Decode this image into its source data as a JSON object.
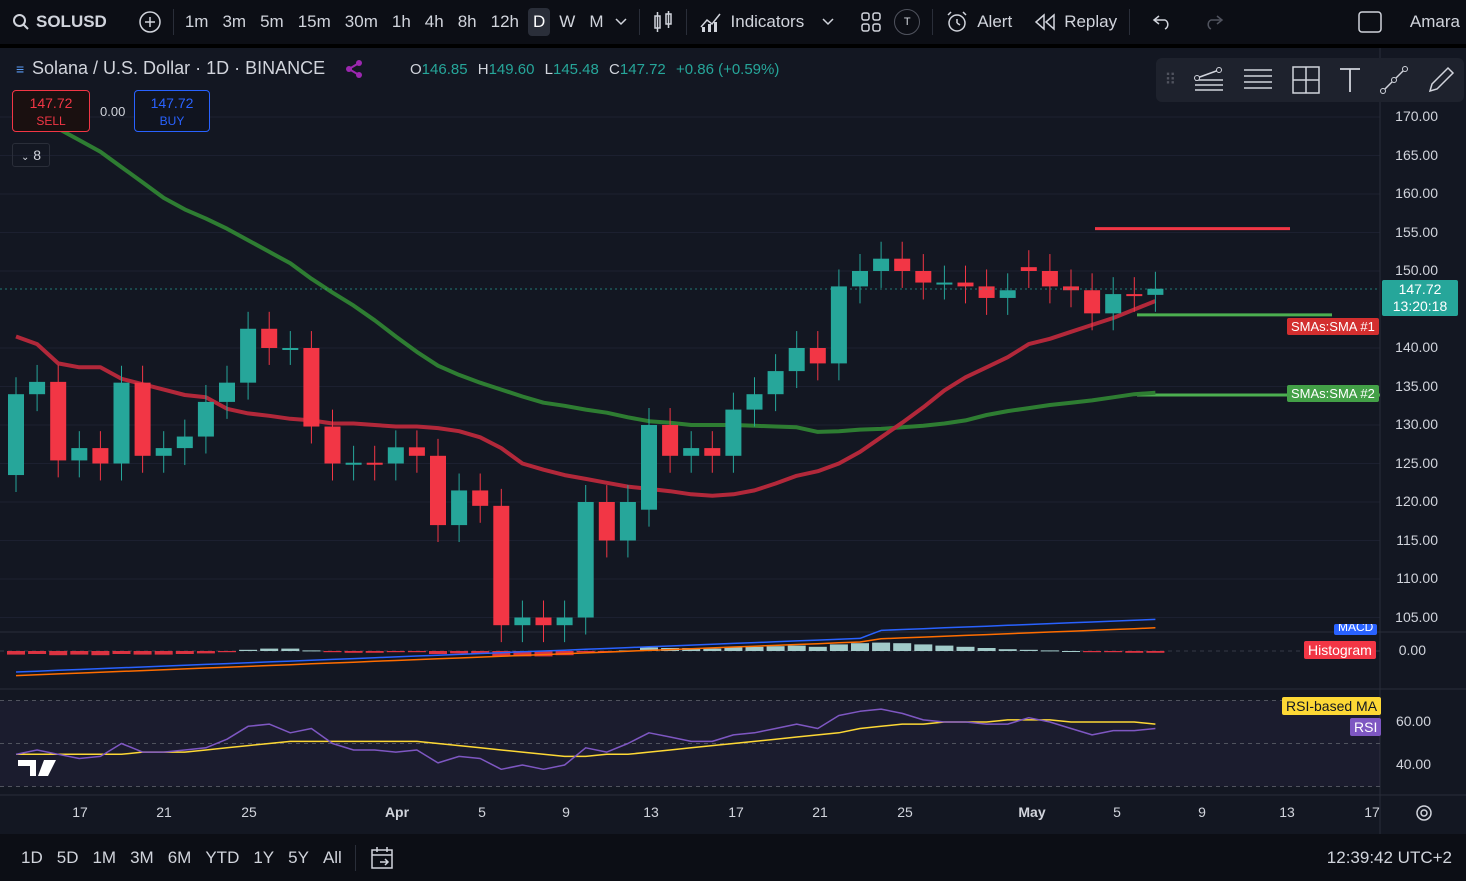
{
  "toolbar": {
    "symbol": "SOLUSD",
    "timeframes": [
      "1m",
      "3m",
      "5m",
      "15m",
      "30m",
      "1h",
      "4h",
      "8h",
      "12h",
      "D",
      "W",
      "M"
    ],
    "active_timeframe": "D",
    "indicators_label": "Indicators",
    "alert_label": "Alert",
    "replay_label": "Replay",
    "user_label": "Amara",
    "t_badge": "T"
  },
  "legend": {
    "title": "Solana / U.S. Dollar · 1D · BINANCE",
    "o_key": "O",
    "o": "146.85",
    "h_key": "H",
    "h": "149.60",
    "l_key": "L",
    "l": "145.48",
    "c_key": "C",
    "c": "147.72",
    "change": "+0.86 (+0.59%)"
  },
  "trade": {
    "sell_price": "147.72",
    "sell_label": "SELL",
    "spread": "0.00",
    "buy_price": "147.72",
    "buy_label": "BUY",
    "collapse_count": "8"
  },
  "price_axis": {
    "labels": [
      "170.00",
      "165.00",
      "160.00",
      "155.00",
      "150.00",
      "140.00",
      "135.00",
      "130.00",
      "125.00",
      "120.00",
      "115.00",
      "110.00",
      "105.00"
    ],
    "current_price": "147.72",
    "countdown": "13:20:18",
    "sma1_tag": "SMAs:SMA #1",
    "sma2_tag": "SMAs:SMA #2",
    "macd_tag": "MACD",
    "histogram_tag": "Histogram",
    "macd_zero": "0.00",
    "rsi_ma_tag": "RSI-based MA",
    "rsi_tag": "RSI",
    "rsi_60": "60.00",
    "rsi_40": "40.00"
  },
  "time_axis": [
    "17",
    "21",
    "25",
    "Apr",
    "5",
    "9",
    "13",
    "17",
    "21",
    "25",
    "May",
    "5",
    "9",
    "13",
    "17"
  ],
  "bottombar": {
    "ranges": [
      "1D",
      "5D",
      "1M",
      "3M",
      "6M",
      "YTD",
      "1Y",
      "5Y",
      "All"
    ],
    "clock": "12:39:42 UTC+2"
  },
  "colors": {
    "up": "#26a69a",
    "down": "#f23645",
    "sma1": "#b2283a",
    "sma2": "#2e7d32",
    "level_red": "#f23645",
    "level_green": "#4caf50",
    "macd": "#2962ff",
    "signal": "#ff6d00",
    "rsi": "#7e57c2",
    "rsi_ma": "#fdd835"
  },
  "chart_data": {
    "type": "candlestick",
    "x": [
      "Mar 14",
      "Mar 15",
      "Mar 16",
      "Mar 17",
      "Mar 18",
      "Mar 19",
      "Mar 20",
      "Mar 21",
      "Mar 22",
      "Mar 23",
      "Mar 24",
      "Mar 25",
      "Mar 26",
      "Mar 27",
      "Mar 28",
      "Mar 29",
      "Mar 30",
      "Mar 31",
      "Apr 1",
      "Apr 2",
      "Apr 3",
      "Apr 4",
      "Apr 5",
      "Apr 6",
      "Apr 7",
      "Apr 8",
      "Apr 9",
      "Apr 10",
      "Apr 11",
      "Apr 12",
      "Apr 13",
      "Apr 14",
      "Apr 15",
      "Apr 16",
      "Apr 17",
      "Apr 18",
      "Apr 19",
      "Apr 20",
      "Apr 21",
      "Apr 22",
      "Apr 23",
      "Apr 24",
      "Apr 25",
      "Apr 26",
      "Apr 27",
      "Apr 28",
      "Apr 29",
      "Apr 30",
      "May 1",
      "May 2",
      "May 3",
      "May 4",
      "May 5",
      "May 6",
      "May 7"
    ],
    "open": [
      123.5,
      134.0,
      135.6,
      125.4,
      127.0,
      125.0,
      135.5,
      126.0,
      127.0,
      128.5,
      133.0,
      135.5,
      142.5,
      140.0,
      140.0,
      129.8,
      125.0,
      125.1,
      125.0,
      127.1,
      126.0,
      117.0,
      121.5,
      119.5,
      104.0,
      105.0,
      104.0,
      105.0,
      120.0,
      115.0,
      119.0,
      130.0,
      126.0,
      127.0,
      126.0,
      132.0,
      134.0,
      137.0,
      140.0,
      138.0,
      148.0,
      150.0,
      151.6,
      150.0,
      148.5,
      148.5,
      148.0,
      146.5,
      150.5,
      150.0,
      148.0,
      147.5,
      144.5,
      147.0,
      146.9
    ],
    "close": [
      134.0,
      135.6,
      125.4,
      127.0,
      125.0,
      135.5,
      126.0,
      127.0,
      128.5,
      133.0,
      135.5,
      142.5,
      140.0,
      140.0,
      129.8,
      125.0,
      125.1,
      125.0,
      127.1,
      126.0,
      117.0,
      121.5,
      119.5,
      104.0,
      105.0,
      104.0,
      105.0,
      120.0,
      115.0,
      120.0,
      130.0,
      126.0,
      127.0,
      126.0,
      132.0,
      134.0,
      137.0,
      140.0,
      138.0,
      148.0,
      150.0,
      151.6,
      150.0,
      148.5,
      148.5,
      148.0,
      146.5,
      147.5,
      150.0,
      148.0,
      147.5,
      144.5,
      147.0,
      146.9,
      147.7
    ],
    "sma1": [
      141.5,
      140.5,
      138.0,
      137.5,
      137.5,
      136.0,
      135.3,
      134.6,
      133.9,
      133.6,
      132.1,
      131.5,
      131.2,
      130.8,
      130.6,
      130.2,
      130.2,
      130.0,
      129.8,
      129.8,
      129.6,
      129.2,
      128.4,
      127.0,
      125.0,
      124.2,
      123.5,
      123.0,
      122.5,
      122.0,
      121.7,
      121.4,
      121.0,
      120.8,
      121.0,
      121.5,
      122.4,
      123.4,
      124.0,
      125.0,
      126.5,
      128.4,
      130.3,
      132.3,
      134.5,
      136.2,
      137.5,
      138.8,
      140.5,
      141.2,
      142.1,
      143.0,
      143.9,
      145.0,
      146.1
    ],
    "sma2": [
      172.0,
      170.5,
      168.5,
      167.0,
      165.5,
      163.5,
      161.5,
      159.5,
      158.0,
      156.8,
      155.5,
      154.0,
      152.5,
      151.0,
      149.0,
      147.2,
      145.5,
      143.6,
      141.5,
      139.5,
      137.7,
      136.5,
      135.5,
      134.6,
      133.7,
      132.9,
      132.5,
      132.0,
      131.6,
      131.0,
      130.5,
      130.3,
      130.0,
      130.0,
      130.0,
      129.9,
      129.8,
      129.7,
      129.1,
      129.2,
      129.4,
      129.5,
      129.7,
      129.9,
      130.2,
      130.6,
      131.3,
      131.8,
      132.2,
      132.6,
      132.9,
      133.2,
      133.6,
      134.0,
      134.2
    ],
    "levels": {
      "resistance": 155.5,
      "support_1": 144.3,
      "support_2": 133.9
    },
    "rsi": [
      45,
      47,
      45,
      43,
      44,
      50,
      46,
      46,
      47,
      48,
      52,
      58,
      59,
      55,
      57,
      50,
      47,
      47,
      46,
      47,
      41,
      44,
      43,
      38,
      40,
      38,
      40,
      48,
      46,
      50,
      55,
      53,
      51,
      51,
      54,
      55,
      57,
      59,
      57,
      63,
      65,
      66,
      64,
      61,
      60,
      60,
      59,
      59,
      62,
      60,
      57,
      54,
      56,
      56,
      57
    ],
    "rsi_ma": [
      45,
      45,
      45,
      45,
      45,
      45,
      46,
      46,
      46,
      47,
      48,
      49,
      50,
      51,
      51,
      51,
      51,
      51,
      51,
      51,
      50,
      49,
      48,
      47,
      46,
      45,
      44,
      44,
      45,
      45,
      46,
      47,
      48,
      49,
      50,
      51,
      52,
      53,
      54,
      55,
      57,
      58,
      59,
      59,
      60,
      60,
      60,
      61,
      61,
      61,
      60,
      60,
      60,
      60,
      59
    ],
    "macd_hist": [
      -0.6,
      -0.5,
      -0.7,
      -0.6,
      -0.7,
      -0.5,
      -0.6,
      -0.6,
      -0.5,
      -0.4,
      -0.2,
      0.2,
      0.4,
      0.4,
      0.1,
      -0.2,
      -0.3,
      -0.3,
      -0.2,
      -0.2,
      -0.5,
      -0.4,
      -0.5,
      -0.9,
      -0.9,
      -0.9,
      -0.7,
      -0.2,
      -0.2,
      0.1,
      0.6,
      0.5,
      0.5,
      0.4,
      0.6,
      0.7,
      0.8,
      0.9,
      0.7,
      1.1,
      1.3,
      1.4,
      1.3,
      1.1,
      0.9,
      0.7,
      0.5,
      0.3,
      0.2,
      0.1,
      0.0,
      -0.2,
      -0.2,
      -0.3,
      -0.3
    ]
  }
}
